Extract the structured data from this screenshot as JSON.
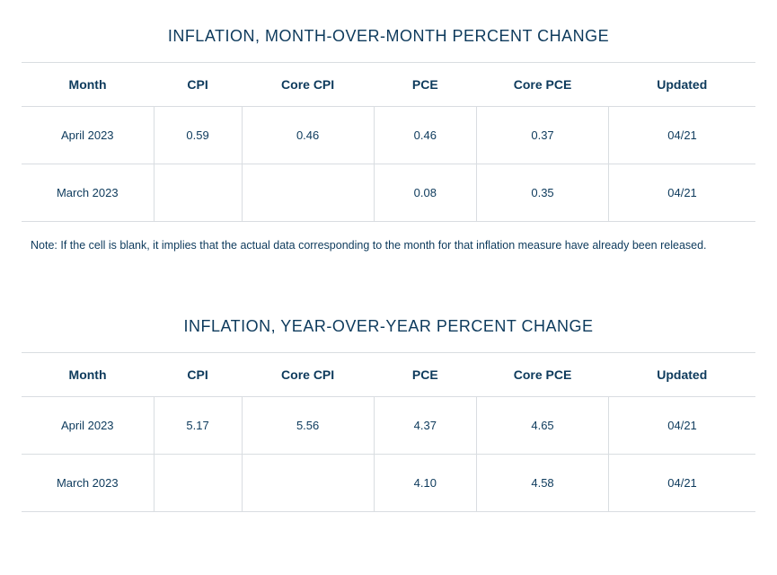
{
  "colors": {
    "text": "#0d3a5c",
    "border": "#d9dde1",
    "background": "#ffffff"
  },
  "table1": {
    "title": "INFLATION, MONTH-OVER-MONTH PERCENT CHANGE",
    "columns": [
      "Month",
      "CPI",
      "Core CPI",
      "PCE",
      "Core PCE",
      "Updated"
    ],
    "rows": [
      {
        "month": "April 2023",
        "cpi": "0.59",
        "core_cpi": "0.46",
        "pce": "0.46",
        "core_pce": "0.37",
        "updated": "04/21"
      },
      {
        "month": "March 2023",
        "cpi": "",
        "core_cpi": "",
        "pce": "0.08",
        "core_pce": "0.35",
        "updated": "04/21"
      }
    ],
    "note": "Note: If the cell is blank, it implies that the actual data corresponding to the month for that inflation measure have already been released."
  },
  "table2": {
    "title": "INFLATION, YEAR-OVER-YEAR PERCENT CHANGE",
    "columns": [
      "Month",
      "CPI",
      "Core CPI",
      "PCE",
      "Core PCE",
      "Updated"
    ],
    "rows": [
      {
        "month": "April 2023",
        "cpi": "5.17",
        "core_cpi": "5.56",
        "pce": "4.37",
        "core_pce": "4.65",
        "updated": "04/21"
      },
      {
        "month": "March 2023",
        "cpi": "",
        "core_cpi": "",
        "pce": "4.10",
        "core_pce": "4.58",
        "updated": "04/21"
      }
    ]
  }
}
